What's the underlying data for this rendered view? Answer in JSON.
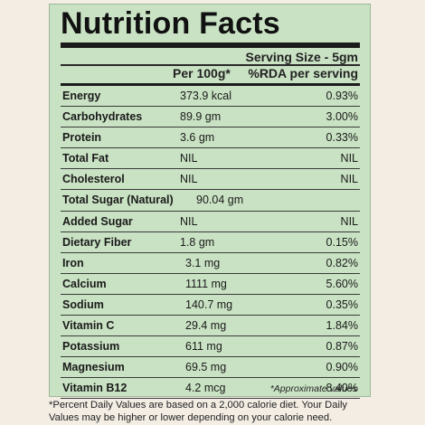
{
  "label": {
    "title": "Nutrition Facts",
    "serving_size": "Serving Size - 5gm",
    "col_per100": "Per 100g*",
    "col_rda": "%RDA per serving",
    "rows": [
      {
        "name": "Energy",
        "amount": "373.9 kcal",
        "rda": "0.93%"
      },
      {
        "name": "Carbohydrates",
        "amount": "89.9 gm",
        "rda": "3.00%"
      },
      {
        "name": "Protein",
        "amount": "3.6 gm",
        "rda": "0.33%"
      },
      {
        "name": "Total Fat",
        "amount": "NIL",
        "rda": "NIL"
      },
      {
        "name": "Cholesterol",
        "amount": "NIL",
        "rda": "NIL"
      },
      {
        "name": "Total Sugar (Natural)",
        "amount": "90.04 gm",
        "rda": ""
      },
      {
        "name": "Added Sugar",
        "amount": "NIL",
        "rda": "NIL"
      },
      {
        "name": "Dietary Fiber",
        "amount": "1.8 gm",
        "rda": "0.15%"
      },
      {
        "name": "Iron",
        "amount": "3.1 mg",
        "rda": "0.82%"
      },
      {
        "name": "Calcium",
        "amount": "1111 mg",
        "rda": "5.60%"
      },
      {
        "name": "Sodium",
        "amount": "140.7 mg",
        "rda": "0.35%"
      },
      {
        "name": "Vitamin C",
        "amount": "29.4 mg",
        "rda": "1.84%"
      },
      {
        "name": "Potassium",
        "amount": "611 mg",
        "rda": "0.87%"
      },
      {
        "name": "Magnesium",
        "amount": "69.5 mg",
        "rda": "0.90%"
      },
      {
        "name": "Vitamin B12",
        "amount": "4.2 mcg",
        "rda": "8.40%"
      }
    ],
    "approx_note": "*Approximate values",
    "footnote_line1": "*Percent Daily Values are based on a 2,000 calorie diet. Your Daily",
    "footnote_line2": "Values may be higher or lower depending on your calorie need."
  },
  "colors": {
    "panel_background": "#c9e2c3",
    "page_background": "#f3ede4",
    "text": "#1a1a1a"
  }
}
